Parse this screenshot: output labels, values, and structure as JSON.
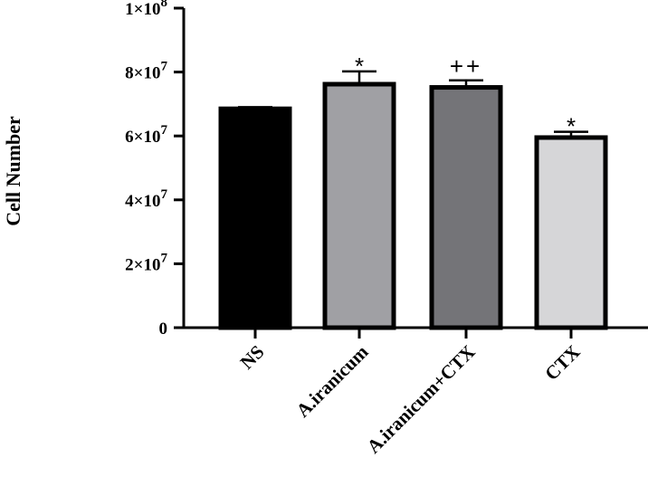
{
  "chart_data": {
    "type": "bar",
    "title": "",
    "xlabel": "",
    "ylabel": "Cell Number",
    "ylim": [
      0,
      100000000
    ],
    "yticks": [
      {
        "value": 0,
        "base": "0",
        "exp": ""
      },
      {
        "value": 20000000,
        "base": "2×10",
        "exp": "7"
      },
      {
        "value": 40000000,
        "base": "4×10",
        "exp": "7"
      },
      {
        "value": 60000000,
        "base": "6×10",
        "exp": "7"
      },
      {
        "value": 80000000,
        "base": "8×10",
        "exp": "7"
      },
      {
        "value": 100000000,
        "base": "1×10",
        "exp": "8"
      }
    ],
    "categories": [
      "NS",
      "A.iranicum",
      "A.iranicum+CTX",
      "CTX"
    ],
    "values": [
      68500000,
      76200000,
      75200000,
      59500000
    ],
    "errors": [
      500000,
      4000000,
      2200000,
      1800000
    ],
    "annotations": [
      "",
      "*",
      "++",
      "*"
    ],
    "colors": [
      "#000000",
      "#a0a0a4",
      "#747478",
      "#d6d6d8"
    ],
    "grid": false,
    "legend": "none"
  }
}
